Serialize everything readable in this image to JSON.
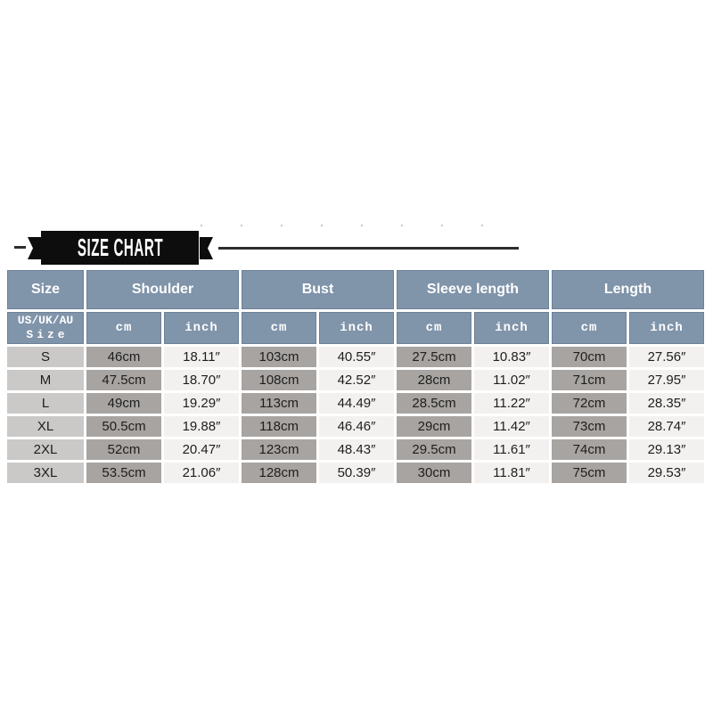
{
  "banner": {
    "title": "SIZE CHART"
  },
  "colors": {
    "banner_bg": "#0d0d0d",
    "header_bg": "#8094aa",
    "size_col_bg": "#cbc9c7",
    "cm_col_bg": "#a8a4a1",
    "inch_col_bg": "#f3f1ef"
  },
  "chart_data": {
    "type": "table",
    "title": "SIZE CHART",
    "group_headers": [
      "Size",
      "Shoulder",
      "Bust",
      "Sleeve length",
      "Length"
    ],
    "sub_header_size_line1": "US/UK/AU",
    "sub_header_size_line2": "Size",
    "unit_headers": [
      "cm",
      "inch",
      "cm",
      "inch",
      "cm",
      "inch",
      "cm",
      "inch"
    ],
    "rows": [
      [
        "S",
        "46cm",
        "18.11″",
        "103cm",
        "40.55″",
        "27.5cm",
        "10.83″",
        "70cm",
        "27.56″"
      ],
      [
        "M",
        "47.5cm",
        "18.70″",
        "108cm",
        "42.52″",
        "28cm",
        "11.02″",
        "71cm",
        "27.95″"
      ],
      [
        "L",
        "49cm",
        "19.29″",
        "113cm",
        "44.49″",
        "28.5cm",
        "11.22″",
        "72cm",
        "28.35″"
      ],
      [
        "XL",
        "50.5cm",
        "19.88″",
        "118cm",
        "46.46″",
        "29cm",
        "11.42″",
        "73cm",
        "28.74″"
      ],
      [
        "2XL",
        "52cm",
        "20.47″",
        "123cm",
        "48.43″",
        "29.5cm",
        "11.61″",
        "74cm",
        "29.13″"
      ],
      [
        "3XL",
        "53.5cm",
        "21.06″",
        "128cm",
        "50.39″",
        "30cm",
        "11.81″",
        "75cm",
        "29.53″"
      ]
    ]
  }
}
